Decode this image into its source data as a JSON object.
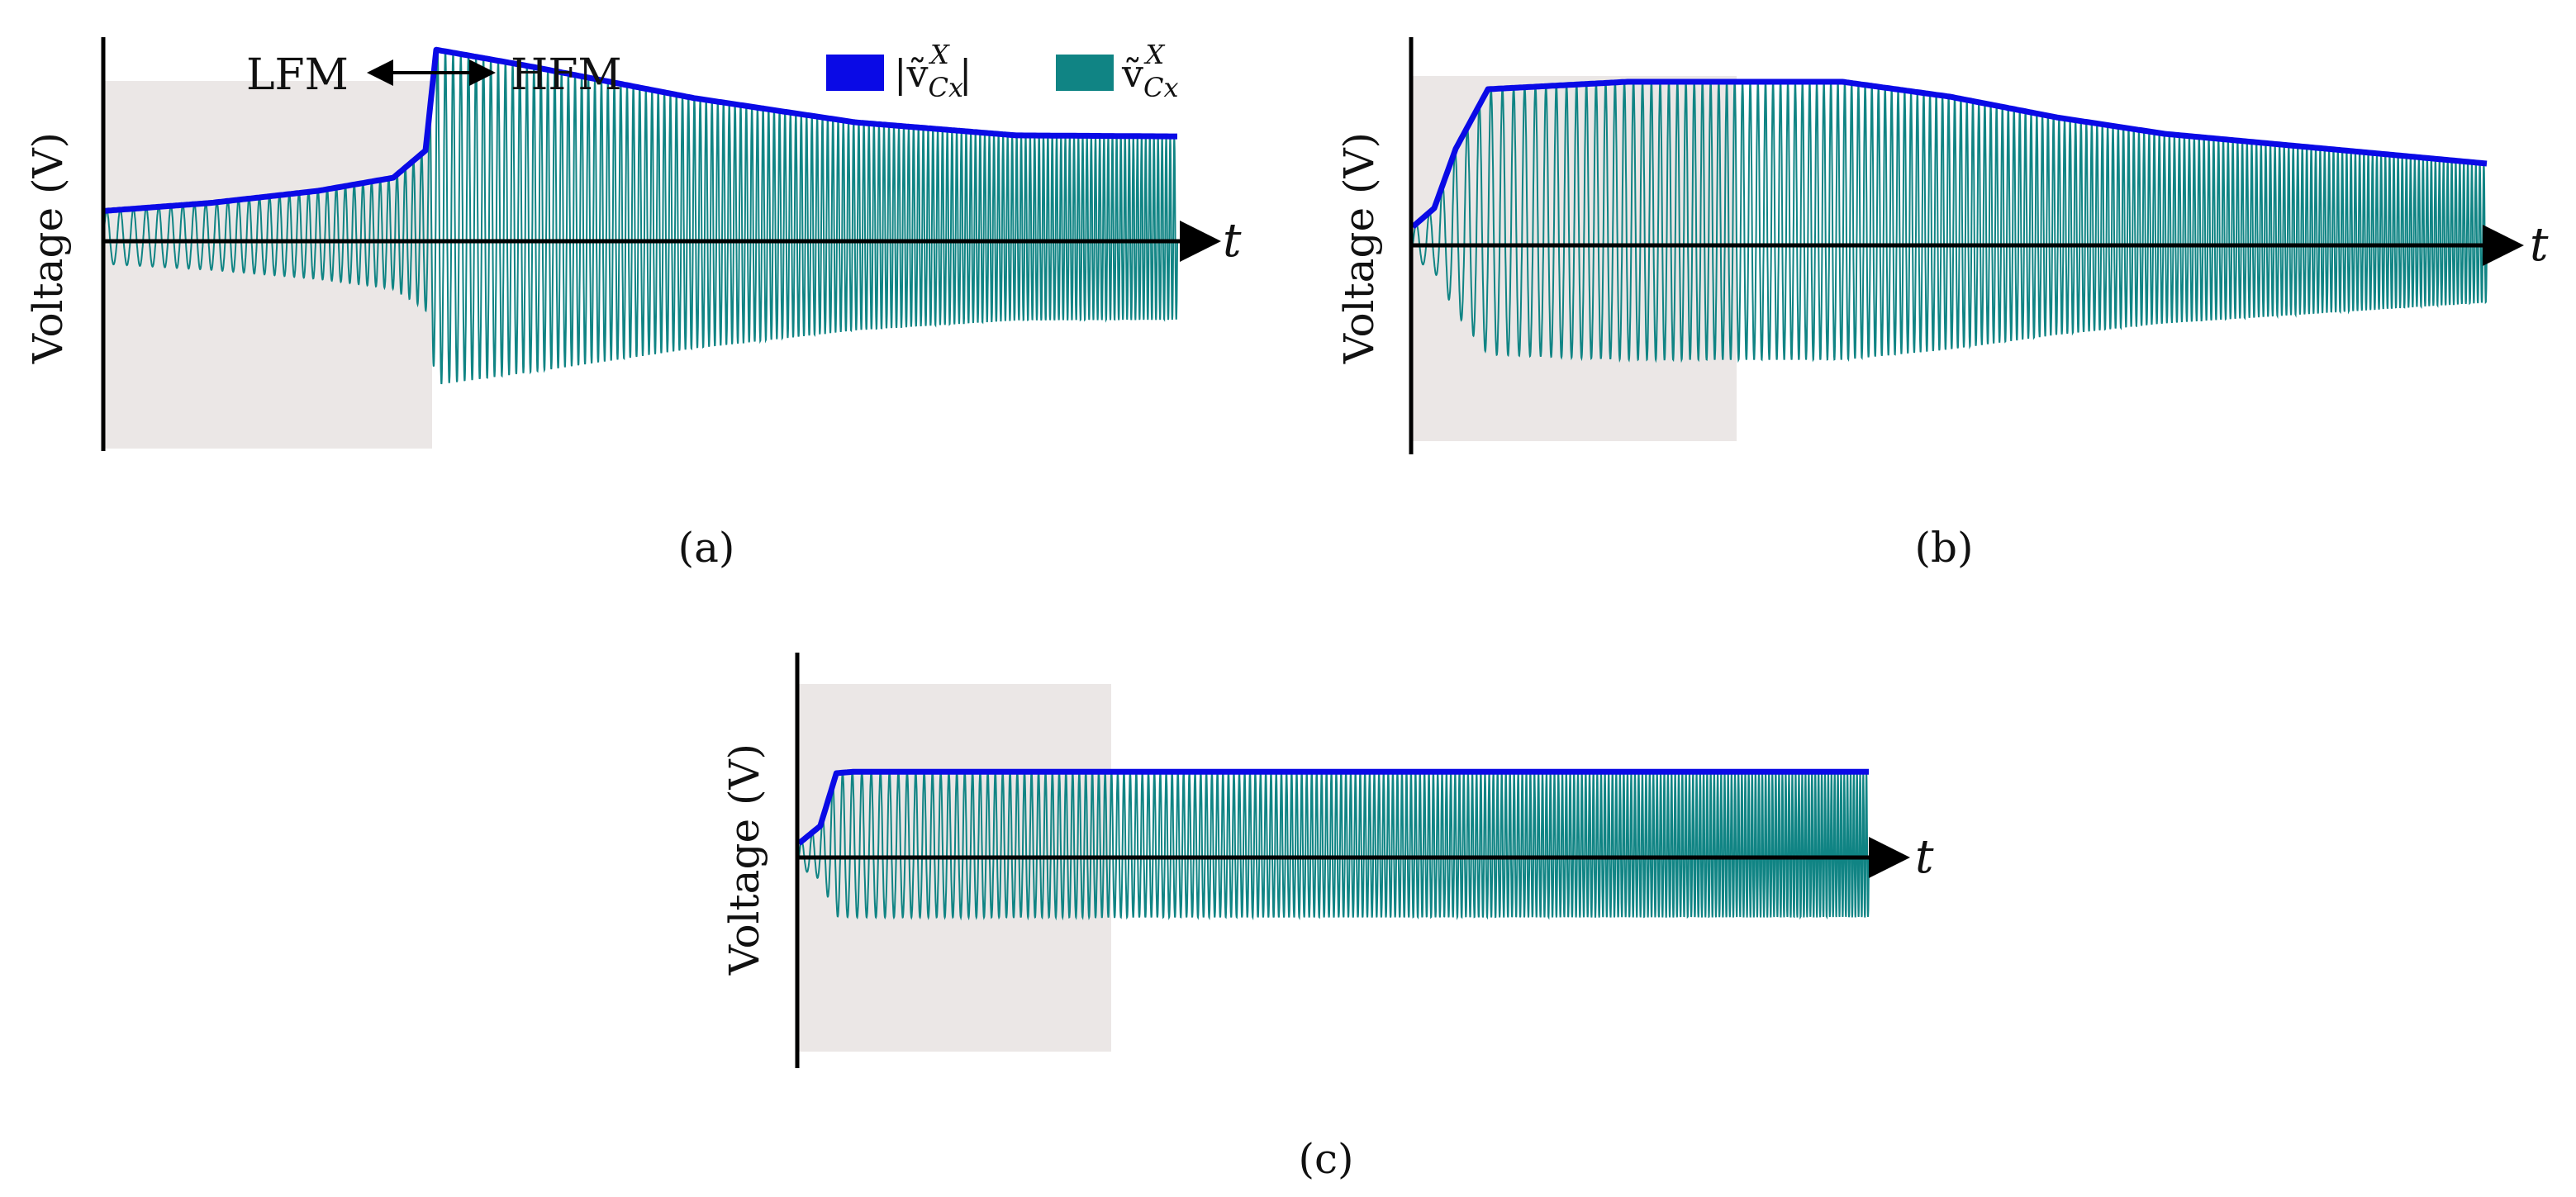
{
  "figure": {
    "legend": {
      "envelope_label": "|ṽ",
      "envelope_sup": "X",
      "envelope_sub": "Cx",
      "envelope_close": "|",
      "signal_label": "ṽ",
      "signal_sup": "X",
      "signal_sub": "Cx"
    },
    "mode_labels": {
      "lfm": "LFM",
      "hfm": "HFM"
    }
  },
  "colors": {
    "envelope": "#0a0ae6",
    "signal": "#108484",
    "shade": "#ebe7e6",
    "axis": "#000000"
  },
  "chart_data": [
    {
      "panel": "(a)",
      "type": "line",
      "ylabel": "Voltage (V)",
      "xlabel": "t",
      "units": "normalized: time 0-1, voltage in units of final envelope amplitude",
      "shaded_region_t": [
        0,
        0.31
      ],
      "transition_t": 0.31,
      "envelope": {
        "t": [
          0,
          0.1,
          0.2,
          0.27,
          0.3,
          0.31,
          0.4,
          0.55,
          0.7,
          0.85,
          1.0
        ],
        "v": [
          0.3,
          0.38,
          0.5,
          0.63,
          0.9,
          1.9,
          1.73,
          1.42,
          1.18,
          1.05,
          1.04
        ]
      },
      "signal": {
        "chirp": true,
        "cycles_lfm": 42,
        "cycles_hfm": 130,
        "low_fraction": 0.75
      }
    },
    {
      "panel": "(b)",
      "type": "line",
      "ylabel": "Voltage (V)",
      "xlabel": "t",
      "shaded_region_t": [
        0,
        0.31
      ],
      "envelope": {
        "t": [
          0,
          0.02,
          0.04,
          0.07,
          0.2,
          0.4,
          0.5,
          0.6,
          0.7,
          0.85,
          1.0
        ],
        "v": [
          0.25,
          0.5,
          1.3,
          2.1,
          2.2,
          2.2,
          2.0,
          1.72,
          1.5,
          1.3,
          1.1
        ]
      },
      "signal": {
        "chirp": true,
        "cycles": 175,
        "low_fraction": 0.7
      }
    },
    {
      "panel": "(c)",
      "type": "line",
      "ylabel": "Voltage (V)",
      "xlabel": "t",
      "shaded_region_t": [
        0,
        0.29
      ],
      "envelope": {
        "t": [
          0,
          0.02,
          0.035,
          0.05,
          0.25,
          0.5,
          0.75,
          1.0
        ],
        "v": [
          0.2,
          0.45,
          1.2,
          1.22,
          1.22,
          1.22,
          1.22,
          1.22
        ]
      },
      "signal": {
        "chirp": true,
        "cycles": 220,
        "low_fraction": 0.7
      }
    }
  ]
}
